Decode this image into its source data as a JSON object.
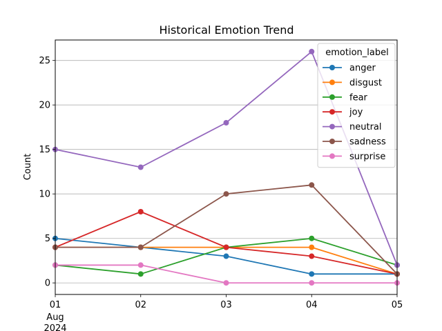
{
  "chart_data": {
    "type": "line",
    "title": "Historical Emotion Trend",
    "xlabel": "",
    "ylabel": "Count",
    "x": [
      "2024-08-01",
      "2024-08-02",
      "2024-08-03",
      "2024-08-04",
      "2024-08-05"
    ],
    "x_tick_labels": [
      "01",
      "02",
      "03",
      "04",
      "05"
    ],
    "x_tick_sublabel_lines": [
      "Aug",
      "2024"
    ],
    "xlim": [
      "2024-08-01",
      "2024-08-05"
    ],
    "ylim": [
      -1.3,
      27.3
    ],
    "y_ticks": [
      0,
      5,
      10,
      15,
      20,
      25
    ],
    "grid": "horizontal",
    "legend": {
      "title": "emotion_label",
      "placement": "top-right"
    },
    "series": [
      {
        "name": "anger",
        "color": "#1f77b4",
        "values": [
          5,
          4,
          3,
          1,
          1
        ]
      },
      {
        "name": "disgust",
        "color": "#ff7f0e",
        "values": [
          4,
          4,
          4,
          4,
          1
        ]
      },
      {
        "name": "fear",
        "color": "#2ca02c",
        "values": [
          2,
          1,
          4,
          5,
          2
        ]
      },
      {
        "name": "joy",
        "color": "#d62728",
        "values": [
          4,
          8,
          4,
          3,
          1
        ]
      },
      {
        "name": "neutral",
        "color": "#9467bd",
        "values": [
          15,
          13,
          18,
          26,
          2
        ]
      },
      {
        "name": "sadness",
        "color": "#8c564b",
        "values": [
          4,
          4,
          10,
          11,
          1
        ]
      },
      {
        "name": "surprise",
        "color": "#e377c2",
        "values": [
          2,
          2,
          0,
          0,
          0
        ]
      }
    ]
  }
}
